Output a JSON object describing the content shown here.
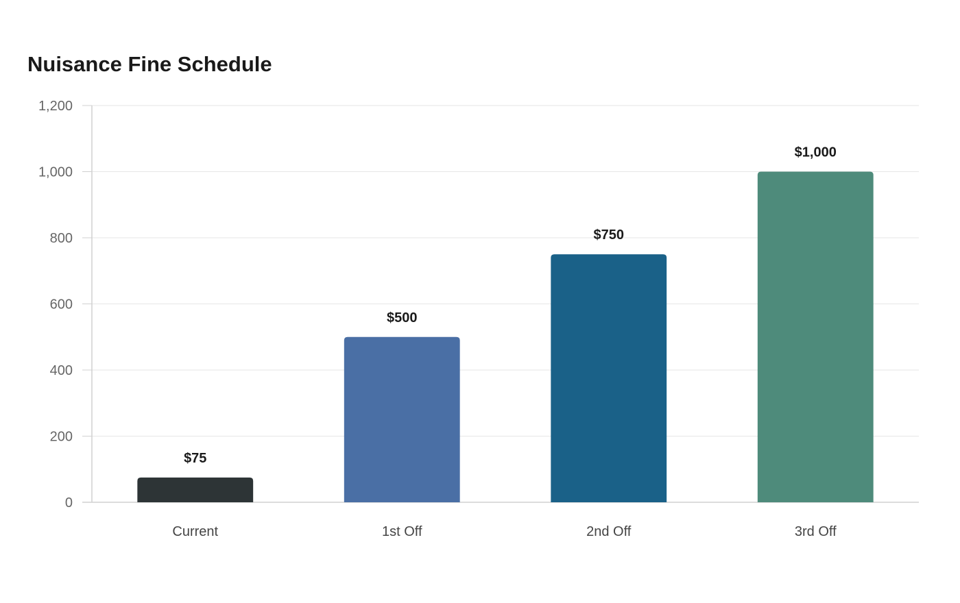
{
  "chart_data": {
    "type": "bar",
    "title": "Nuisance Fine Schedule",
    "categories": [
      "Current",
      "1st Off",
      "2nd Off",
      "3rd Off"
    ],
    "values": [
      75,
      500,
      750,
      1000
    ],
    "data_labels": [
      "$75",
      "$500",
      "$750",
      "$1,000"
    ],
    "colors": [
      "#2d3436",
      "#4a6fa5",
      "#1a6188",
      "#4e8b7b"
    ],
    "ylim": [
      0,
      1200
    ],
    "yticks": [
      0,
      200,
      400,
      600,
      800,
      1000,
      1200
    ],
    "ytick_labels": [
      "0",
      "200",
      "400",
      "600",
      "800",
      "1,000",
      "1,200"
    ],
    "grid": true,
    "legend": "none",
    "xlabel": "",
    "ylabel": ""
  }
}
